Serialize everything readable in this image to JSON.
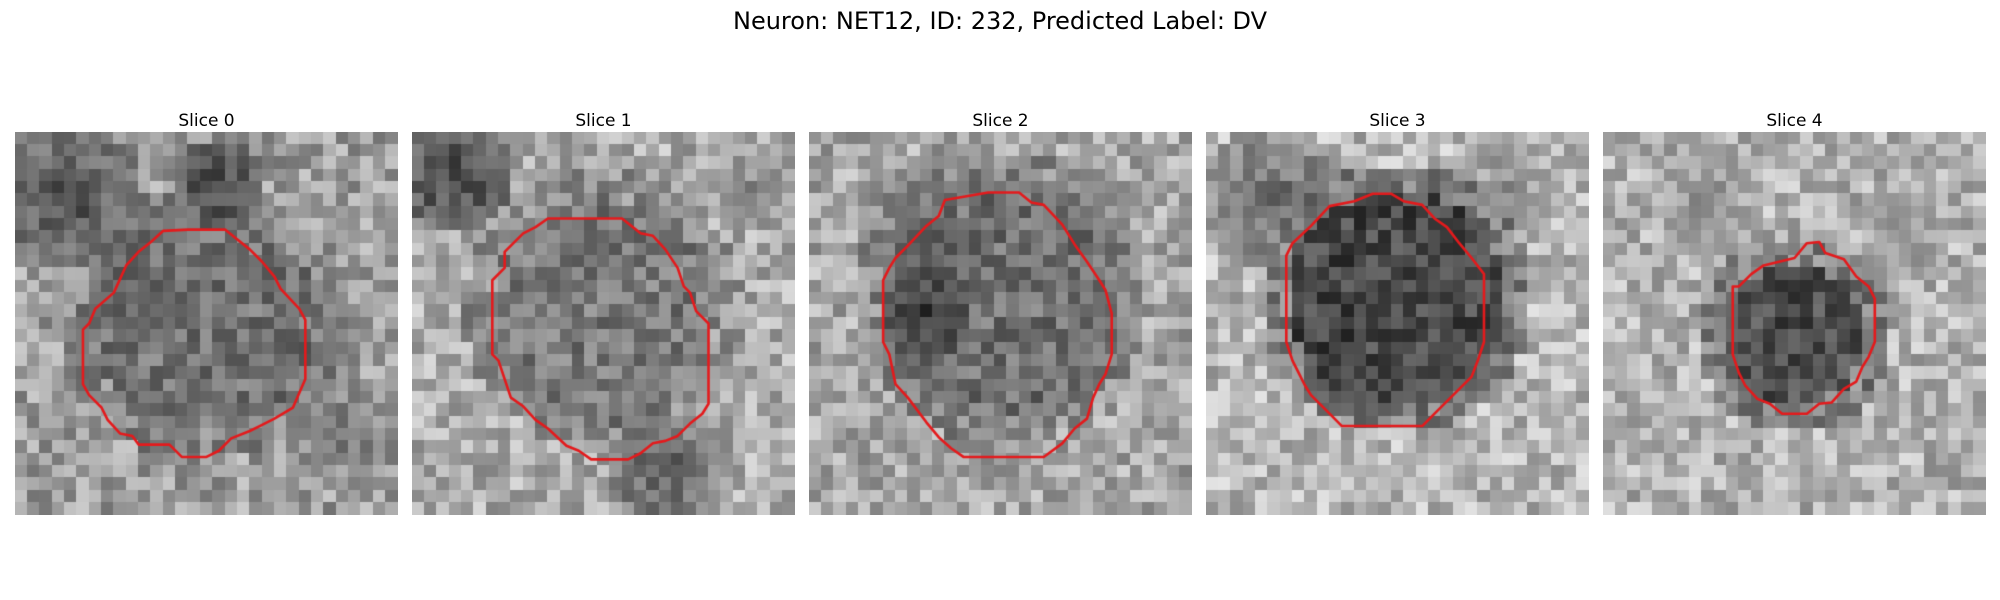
{
  "figure": {
    "title": "Neuron: NET12, ID: 232, Predicted Label: DV"
  },
  "panels": [
    {
      "title": "Slice 0"
    },
    {
      "title": "Slice 1"
    },
    {
      "title": "Slice 2"
    },
    {
      "title": "Slice 3"
    },
    {
      "title": "Slice 4"
    }
  ],
  "colors": {
    "contour": "#e41a1c",
    "background": "#ffffff"
  }
}
